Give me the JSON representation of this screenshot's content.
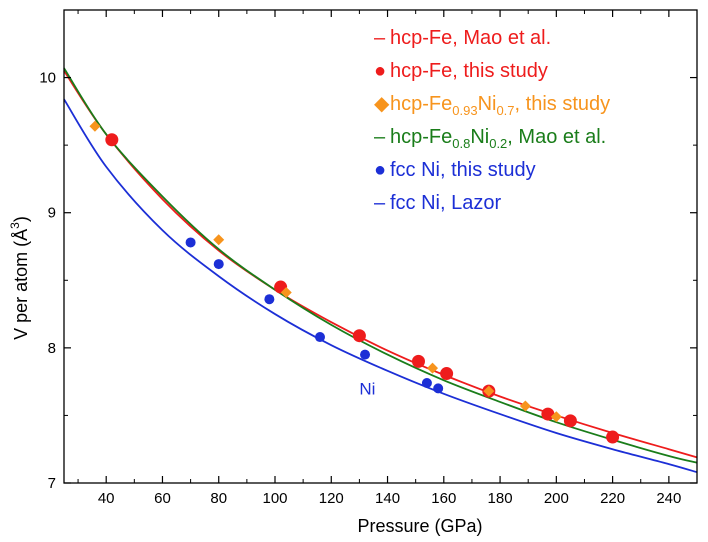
{
  "chart_data": {
    "type": "scatter",
    "xlabel": "Pressure (GPa)",
    "ylabel": "V per atom (Å³)",
    "ylabel_main": "V per atom (Å",
    "ylabel_sup": "3",
    "ylabel_close": ")",
    "xlim": [
      25,
      250
    ],
    "ylim": [
      7,
      10.5
    ],
    "xticks": [
      40,
      60,
      80,
      100,
      120,
      140,
      160,
      180,
      200,
      220,
      240
    ],
    "yticks": [
      7,
      8,
      9,
      10
    ],
    "colors": {
      "red": "#ee1c1c",
      "orange": "#f7941d",
      "green": "#1a7d1a",
      "blue": "#1c2fd6"
    },
    "annotation": {
      "text": "Ni",
      "x": 130,
      "y": 7.7
    },
    "legend": [
      {
        "kind": "line",
        "color": "red",
        "symbol": "–",
        "text": "hcp-Fe, Mao et al."
      },
      {
        "kind": "circle",
        "color": "red",
        "symbol": "●",
        "text": "hcp-Fe, this study"
      },
      {
        "kind": "diamond",
        "color": "orange",
        "symbol": "◆",
        "parts": [
          "hcp-Fe",
          "0.93",
          "Ni",
          "0.7",
          ", this study"
        ]
      },
      {
        "kind": "line",
        "color": "green",
        "symbol": "–",
        "parts": [
          "hcp-Fe",
          "0.8",
          "Ni",
          "0.2",
          ", Mao et al."
        ]
      },
      {
        "kind": "circle",
        "color": "blue",
        "symbol": "●",
        "text": "fcc Ni, this study"
      },
      {
        "kind": "line",
        "color": "blue",
        "symbol": "–",
        "text": "fcc Ni, Lazor"
      }
    ],
    "series": [
      {
        "name": "hcp-Fe, this study",
        "kind": "circle",
        "color": "red",
        "points": [
          [
            42,
            9.54
          ],
          [
            102,
            8.45
          ],
          [
            130,
            8.09
          ],
          [
            151,
            7.9
          ],
          [
            161,
            7.81
          ],
          [
            176,
            7.68
          ],
          [
            197,
            7.51
          ],
          [
            205,
            7.46
          ],
          [
            220,
            7.34
          ]
        ]
      },
      {
        "name": "hcp-Fe0.93Ni0.7, this study",
        "kind": "diamond",
        "color": "orange",
        "points": [
          [
            36,
            9.64
          ],
          [
            80,
            8.8
          ],
          [
            104,
            8.41
          ],
          [
            156,
            7.85
          ],
          [
            176,
            7.68
          ],
          [
            189,
            7.57
          ],
          [
            200,
            7.49
          ]
        ]
      },
      {
        "name": "fcc Ni, this study",
        "kind": "circle",
        "color": "blue",
        "points": [
          [
            70,
            8.78
          ],
          [
            80,
            8.62
          ],
          [
            98,
            8.36
          ],
          [
            116,
            8.08
          ],
          [
            132,
            7.95
          ],
          [
            154,
            7.74
          ],
          [
            158,
            7.7
          ]
        ]
      },
      {
        "name": "hcp-Fe, Mao et al.",
        "kind": "line",
        "color": "red",
        "points": [
          [
            25,
            10.05
          ],
          [
            40,
            9.58
          ],
          [
            60,
            9.1
          ],
          [
            80,
            8.72
          ],
          [
            100,
            8.43
          ],
          [
            120,
            8.19
          ],
          [
            140,
            7.98
          ],
          [
            160,
            7.8
          ],
          [
            180,
            7.64
          ],
          [
            200,
            7.5
          ],
          [
            220,
            7.37
          ],
          [
            240,
            7.25
          ],
          [
            250,
            7.19
          ]
        ]
      },
      {
        "name": "hcp-Fe0.8Ni0.2, Mao et al.",
        "kind": "line",
        "color": "green",
        "points": [
          [
            25,
            10.07
          ],
          [
            40,
            9.58
          ],
          [
            60,
            9.12
          ],
          [
            80,
            8.73
          ],
          [
            100,
            8.43
          ],
          [
            120,
            8.17
          ],
          [
            140,
            7.95
          ],
          [
            160,
            7.76
          ],
          [
            180,
            7.6
          ],
          [
            200,
            7.45
          ],
          [
            220,
            7.32
          ],
          [
            240,
            7.2
          ],
          [
            250,
            7.15
          ]
        ]
      },
      {
        "name": "fcc Ni, Lazor",
        "kind": "line",
        "color": "blue",
        "points": [
          [
            25,
            9.84
          ],
          [
            40,
            9.34
          ],
          [
            60,
            8.87
          ],
          [
            80,
            8.53
          ],
          [
            100,
            8.25
          ],
          [
            120,
            8.02
          ],
          [
            140,
            7.83
          ],
          [
            160,
            7.66
          ],
          [
            180,
            7.51
          ],
          [
            200,
            7.37
          ],
          [
            220,
            7.25
          ],
          [
            240,
            7.14
          ],
          [
            250,
            7.08
          ]
        ]
      }
    ]
  }
}
